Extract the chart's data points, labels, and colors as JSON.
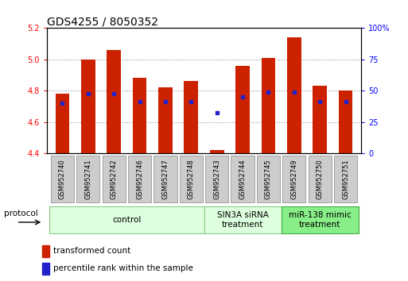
{
  "title": "GDS4255 / 8050352",
  "samples": [
    "GSM952740",
    "GSM952741",
    "GSM952742",
    "GSM952746",
    "GSM952747",
    "GSM952748",
    "GSM952743",
    "GSM952744",
    "GSM952745",
    "GSM952749",
    "GSM952750",
    "GSM952751"
  ],
  "red_values": [
    4.78,
    5.0,
    5.06,
    4.88,
    4.82,
    4.86,
    4.42,
    4.96,
    5.01,
    5.14,
    4.83,
    4.8
  ],
  "blue_values": [
    4.72,
    4.78,
    4.78,
    4.73,
    4.73,
    4.73,
    4.66,
    4.76,
    4.79,
    4.79,
    4.73,
    4.73
  ],
  "ylim_left": [
    4.4,
    5.2
  ],
  "ylim_right": [
    0,
    100
  ],
  "yticks_left": [
    4.4,
    4.6,
    4.8,
    5.0,
    5.2
  ],
  "yticks_right": [
    0,
    25,
    50,
    75,
    100
  ],
  "ytick_labels_right": [
    "0",
    "25",
    "50",
    "75",
    "100%"
  ],
  "bar_color": "#cc2200",
  "dot_color": "#2222cc",
  "bar_width": 0.55,
  "groups": [
    {
      "start": 0,
      "end": 5,
      "label": "control",
      "color": "#ddffdd",
      "edgecolor": "#88cc88"
    },
    {
      "start": 6,
      "end": 8,
      "label": "SIN3A siRNA\ntreatment",
      "color": "#ddffdd",
      "edgecolor": "#88cc88"
    },
    {
      "start": 9,
      "end": 11,
      "label": "miR-138 mimic\ntreatment",
      "color": "#88ee88",
      "edgecolor": "#44aa44"
    }
  ],
  "legend_red": "transformed count",
  "legend_blue": "percentile rank within the sample",
  "protocol_label": "protocol",
  "title_fontsize": 10,
  "tick_fontsize": 7,
  "sample_fontsize": 6,
  "group_fontsize": 7.5
}
